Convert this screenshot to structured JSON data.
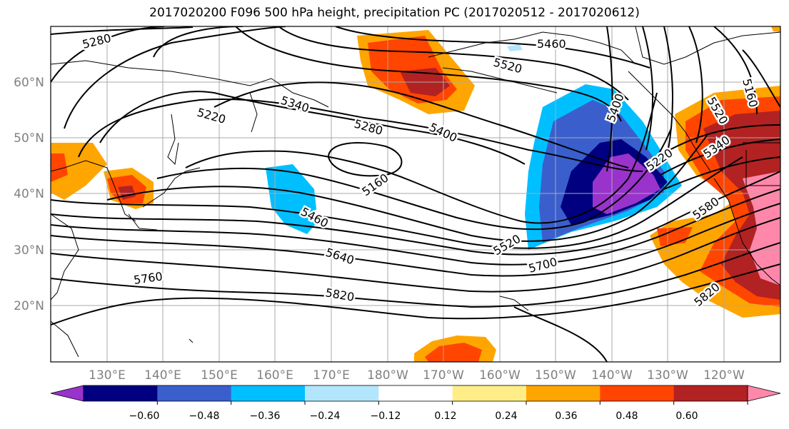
{
  "title": "2017020200 F096 500 hPa height, precipitation PC (2017020512 - 2017020612)",
  "lat_labels": [
    "60°N",
    "50°N",
    "40°N",
    "30°N",
    "20°N"
  ],
  "lon_labels": [
    "130°E",
    "140°E",
    "150°E",
    "160°E",
    "170°E",
    "180°W",
    "170°W",
    "160°W",
    "150°W",
    "140°W",
    "130°W",
    "120°W"
  ],
  "contour_labels": [
    "5280",
    "5220",
    "5340",
    "5280",
    "5400",
    "5460",
    "5520",
    "5160",
    "5460",
    "5640",
    "5760",
    "5820",
    "5520",
    "5700",
    "5400",
    "5220",
    "5580",
    "5820",
    "5340",
    "5160",
    "5520"
  ],
  "colorbar": {
    "ticks": [
      "−0.60",
      "−0.48",
      "−0.36",
      "−0.24",
      "−0.12",
      "0.12",
      "0.24",
      "0.36",
      "0.48",
      "0.60"
    ],
    "colors": [
      "#9933cc",
      "#000080",
      "#3a5fcd",
      "#00bfff",
      "#b3e5fc",
      "#ffffff",
      "#ffee88",
      "#ffa500",
      "#ff4500",
      "#b22222",
      "#ff88aa"
    ]
  }
}
